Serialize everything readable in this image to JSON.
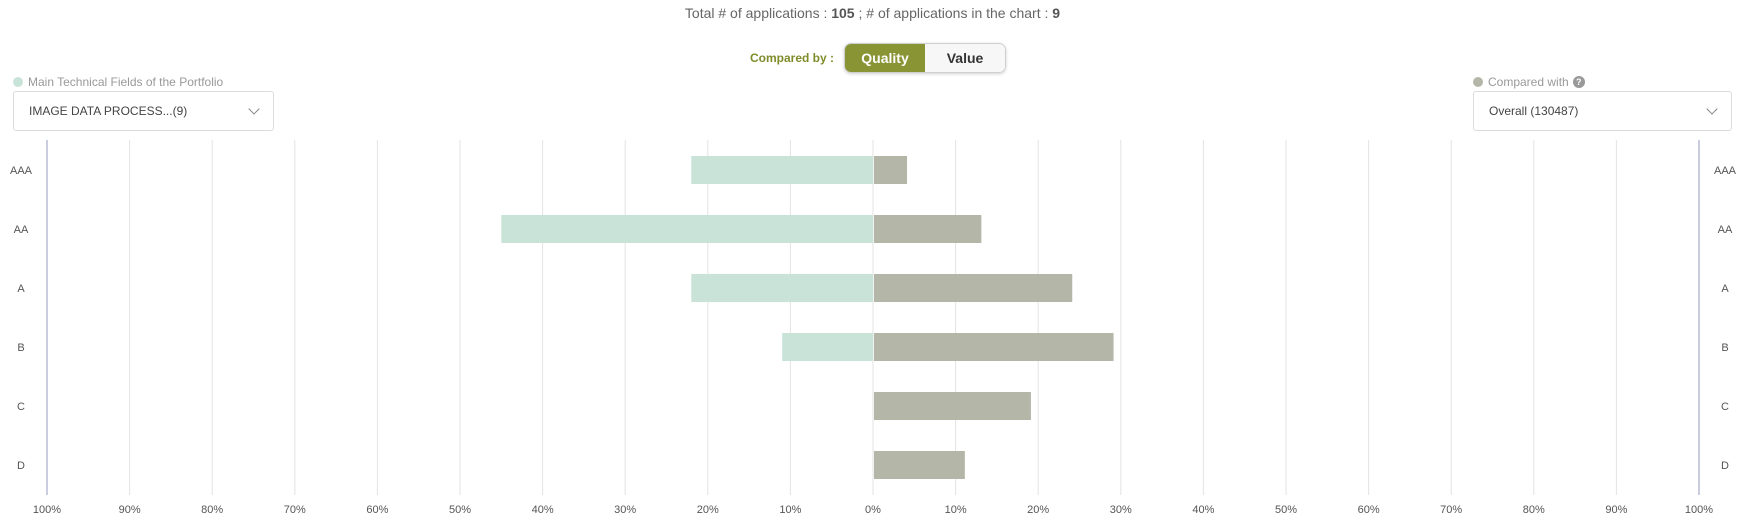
{
  "summary": {
    "prefix": "Total # of applications : ",
    "total": "105",
    "middle": " ; # of applications in the chart : ",
    "in_chart": "9"
  },
  "compare": {
    "label": "Compared by :",
    "options": [
      "Quality",
      "Value"
    ],
    "selected": "Quality"
  },
  "left_panel": {
    "legend_label": "Main Technical Fields of the Portfolio",
    "select_value": "IMAGE DATA PROCESS...(9)",
    "dot_color": "#c9e3d8"
  },
  "right_panel": {
    "legend_label": "Compared with",
    "select_value": "Overall (130487)",
    "dot_color": "#b4b7a8",
    "help_icon": "question-circle-icon"
  },
  "chart_data": {
    "type": "bar",
    "orientation": "horizontal-diverging",
    "categories": [
      "AAA",
      "AA",
      "A",
      "B",
      "C",
      "D"
    ],
    "series": [
      {
        "name": "Main Technical Fields of the Portfolio",
        "side": "left",
        "color": "#c9e3d8",
        "values": [
          22,
          45,
          22,
          11,
          0,
          0
        ]
      },
      {
        "name": "Compared with",
        "side": "right",
        "color": "#b4b7a8",
        "values": [
          4,
          13,
          24,
          29,
          19,
          11
        ]
      }
    ],
    "x_ticks": [
      "100%",
      "90%",
      "80%",
      "70%",
      "60%",
      "50%",
      "40%",
      "30%",
      "20%",
      "10%",
      "0%",
      "10%",
      "20%",
      "30%",
      "40%",
      "50%",
      "60%",
      "70%",
      "80%",
      "90%",
      "100%"
    ],
    "xlim": [
      -100,
      100
    ],
    "unit": "%",
    "grid": true
  }
}
